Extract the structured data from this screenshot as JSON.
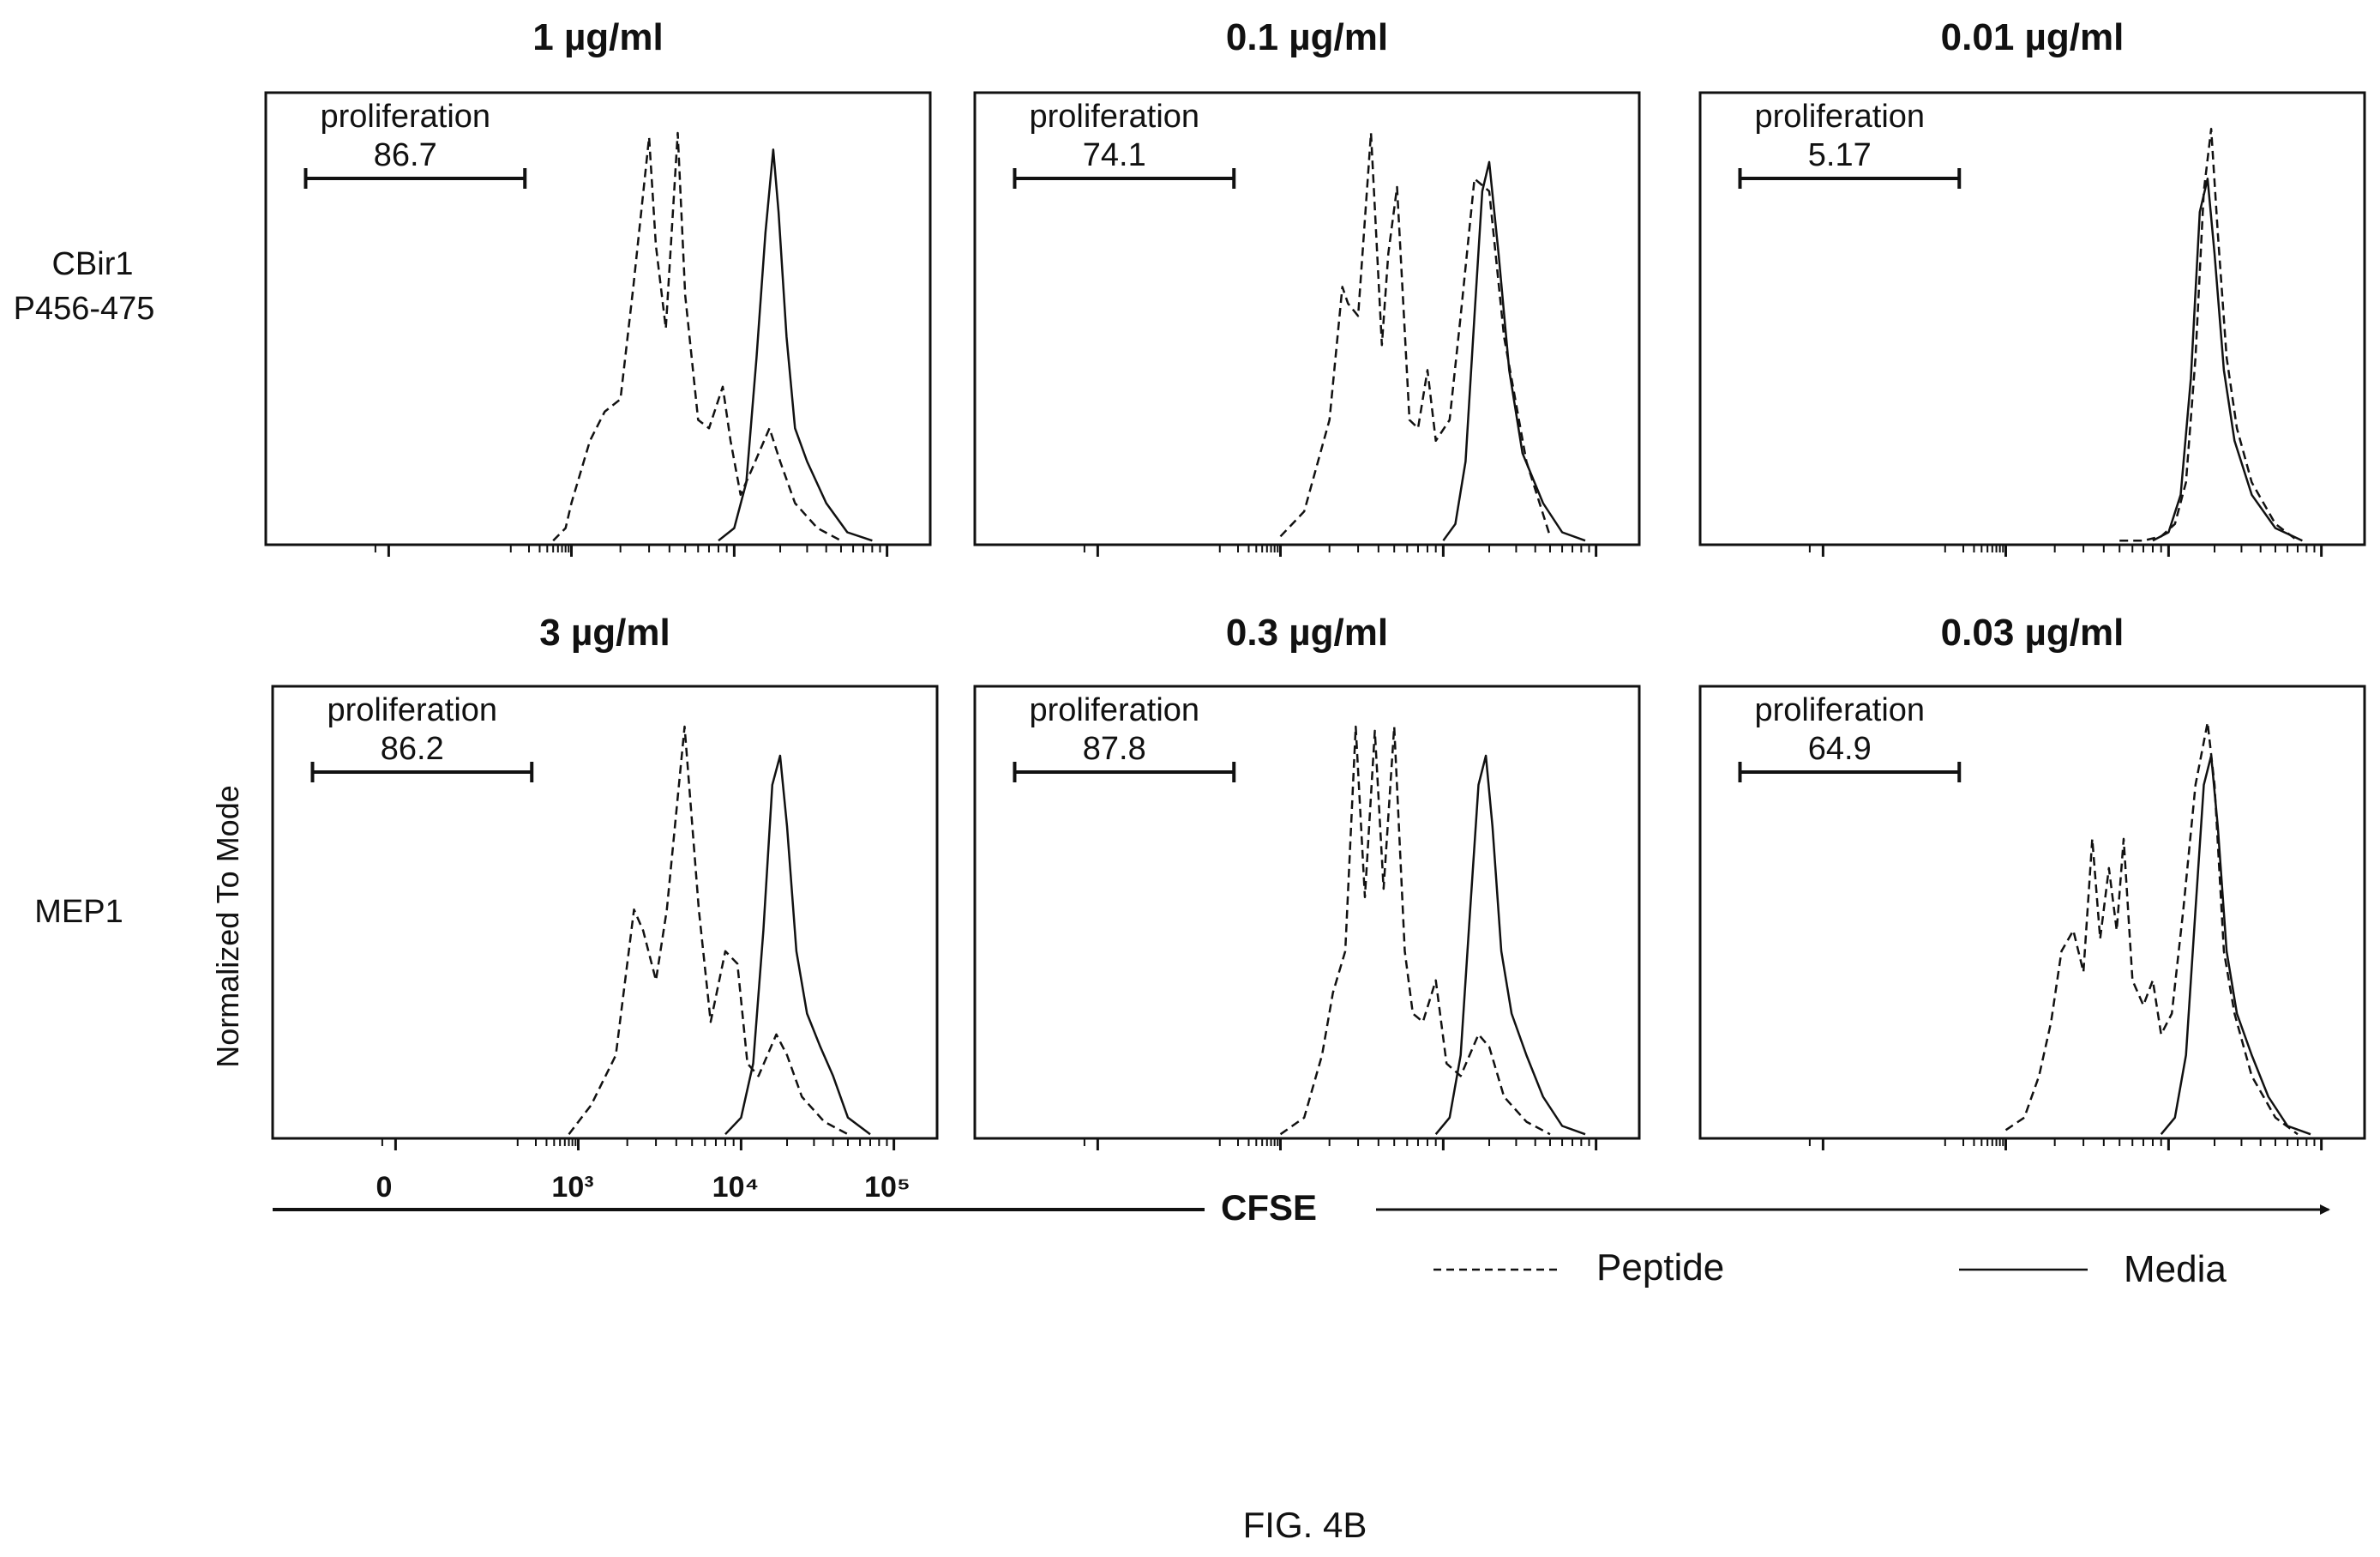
{
  "figure": {
    "caption": "FIG. 4B",
    "x_axis_label": "CFSE",
    "y_axis_label": "Normalized To Mode",
    "x_tick_labels": [
      "0",
      "10³",
      "10⁴",
      "10⁵"
    ],
    "legend": [
      {
        "label": "Peptide",
        "style": "dashed"
      },
      {
        "label": "Media",
        "style": "solid"
      }
    ],
    "row_labels": [
      [
        "CBir1",
        "P456-475"
      ],
      [
        "MEP1"
      ]
    ],
    "gate_label": "proliferation"
  },
  "chart_data": [
    {
      "type": "histogram",
      "row": "CBir1 P456-475",
      "title": "1 µg/ml",
      "gate_value": "86.7",
      "x_scale": "biexponential",
      "xlim": [
        -200,
        200000
      ],
      "ylim": [
        0,
        1
      ],
      "series": [
        {
          "name": "Peptide",
          "style": "dashed",
          "x": [
            500,
            800,
            1000,
            1300,
            1600,
            2000,
            2400,
            3000,
            3300,
            3800,
            4500,
            5000,
            6000,
            7000,
            8500,
            9500,
            11000,
            13000,
            17000,
            20000,
            25000,
            35000,
            50000
          ],
          "y": [
            0.01,
            0.04,
            0.1,
            0.25,
            0.32,
            0.35,
            0.62,
            0.98,
            0.72,
            0.52,
            0.99,
            0.6,
            0.3,
            0.28,
            0.38,
            0.25,
            0.12,
            0.18,
            0.28,
            0.2,
            0.1,
            0.04,
            0.01
          ]
        },
        {
          "name": "Media",
          "style": "solid",
          "x": [
            8000,
            10000,
            12000,
            14000,
            16000,
            18000,
            19500,
            22000,
            25000,
            30000,
            40000,
            55000,
            80000
          ],
          "y": [
            0.01,
            0.04,
            0.15,
            0.45,
            0.75,
            0.95,
            0.8,
            0.5,
            0.28,
            0.2,
            0.1,
            0.03,
            0.01
          ]
        }
      ]
    },
    {
      "type": "histogram",
      "row": "CBir1 P456-475",
      "title": "0.1 µg/ml",
      "gate_value": "74.1",
      "x_scale": "biexponential",
      "xlim": [
        -200,
        200000
      ],
      "ylim": [
        0,
        1
      ],
      "series": [
        {
          "name": "Peptide",
          "style": "dashed",
          "x": [
            1000,
            1400,
            1700,
            2000,
            2400,
            2600,
            3000,
            3600,
            4200,
            4600,
            5200,
            6200,
            7000,
            8000,
            9000,
            11000,
            13000,
            16000,
            20000,
            25000,
            35000,
            50000
          ],
          "y": [
            0.02,
            0.08,
            0.2,
            0.3,
            0.62,
            0.58,
            0.55,
            0.99,
            0.48,
            0.7,
            0.86,
            0.3,
            0.28,
            0.42,
            0.25,
            0.3,
            0.55,
            0.88,
            0.85,
            0.5,
            0.2,
            0.02
          ]
        },
        {
          "name": "Media",
          "style": "solid",
          "x": [
            10000,
            12000,
            14000,
            16000,
            18000,
            20000,
            23000,
            27000,
            33000,
            45000,
            60000,
            85000
          ],
          "y": [
            0.01,
            0.05,
            0.2,
            0.55,
            0.85,
            0.92,
            0.7,
            0.42,
            0.22,
            0.1,
            0.03,
            0.01
          ]
        }
      ]
    },
    {
      "type": "histogram",
      "row": "CBir1 P456-475",
      "title": "0.01 µg/ml",
      "gate_value": "5.17",
      "x_scale": "biexponential",
      "xlim": [
        -200,
        200000
      ],
      "ylim": [
        0,
        1
      ],
      "series": [
        {
          "name": "Peptide",
          "style": "dashed",
          "x": [
            5000,
            7000,
            9000,
            11000,
            13000,
            15000,
            17000,
            19000,
            21000,
            24000,
            28000,
            35000,
            50000,
            70000
          ],
          "y": [
            0.01,
            0.01,
            0.02,
            0.05,
            0.15,
            0.45,
            0.85,
            1.0,
            0.75,
            0.45,
            0.28,
            0.15,
            0.05,
            0.01
          ]
        },
        {
          "name": "Media",
          "style": "solid",
          "x": [
            8000,
            10000,
            12000,
            14000,
            16000,
            18000,
            20000,
            23000,
            27000,
            35000,
            50000,
            75000
          ],
          "y": [
            0.01,
            0.03,
            0.12,
            0.4,
            0.8,
            0.88,
            0.7,
            0.42,
            0.25,
            0.12,
            0.04,
            0.01
          ]
        }
      ]
    },
    {
      "type": "histogram",
      "row": "MEP1",
      "title": "3 µg/ml",
      "gate_value": "86.2",
      "x_scale": "biexponential",
      "xlim": [
        -200,
        200000
      ],
      "ylim": [
        0,
        1
      ],
      "series": [
        {
          "name": "Peptide",
          "style": "dashed",
          "x": [
            700,
            1200,
            1700,
            2200,
            2500,
            3000,
            3500,
            4500,
            5500,
            6500,
            8000,
            9500,
            11000,
            13000,
            17000,
            20000,
            25000,
            35000,
            50000
          ],
          "y": [
            0.01,
            0.08,
            0.2,
            0.55,
            0.5,
            0.38,
            0.55,
            0.99,
            0.55,
            0.28,
            0.45,
            0.42,
            0.18,
            0.15,
            0.25,
            0.2,
            0.1,
            0.04,
            0.01
          ]
        },
        {
          "name": "Media",
          "style": "solid",
          "x": [
            8000,
            10000,
            12000,
            14000,
            16000,
            18000,
            20000,
            23000,
            27000,
            33000,
            40000,
            50000,
            70000
          ],
          "y": [
            0.01,
            0.05,
            0.18,
            0.5,
            0.85,
            0.92,
            0.75,
            0.45,
            0.3,
            0.22,
            0.15,
            0.05,
            0.01
          ]
        }
      ]
    },
    {
      "type": "histogram",
      "row": "MEP1",
      "title": "0.3 µg/ml",
      "gate_value": "87.8",
      "x_scale": "biexponential",
      "xlim": [
        -200,
        200000
      ],
      "ylim": [
        0,
        1
      ],
      "series": [
        {
          "name": "Peptide",
          "style": "dashed",
          "x": [
            1000,
            1400,
            1800,
            2100,
            2500,
            2900,
            3300,
            3800,
            4300,
            5000,
            5800,
            6500,
            7500,
            9000,
            10500,
            13000,
            17000,
            20000,
            25000,
            35000,
            50000
          ],
          "y": [
            0.01,
            0.05,
            0.2,
            0.35,
            0.45,
            0.99,
            0.58,
            0.98,
            0.6,
            0.99,
            0.45,
            0.3,
            0.28,
            0.38,
            0.18,
            0.15,
            0.25,
            0.22,
            0.1,
            0.04,
            0.01
          ]
        },
        {
          "name": "Media",
          "style": "solid",
          "x": [
            9000,
            11000,
            13000,
            15000,
            17000,
            19000,
            21000,
            24000,
            28000,
            35000,
            45000,
            60000,
            85000
          ],
          "y": [
            0.01,
            0.05,
            0.2,
            0.55,
            0.85,
            0.92,
            0.75,
            0.45,
            0.3,
            0.2,
            0.1,
            0.03,
            0.01
          ]
        }
      ]
    },
    {
      "type": "histogram",
      "row": "MEP1",
      "title": "0.03 µg/ml",
      "gate_value": "64.9",
      "x_scale": "biexponential",
      "xlim": [
        -200,
        200000
      ],
      "ylim": [
        0,
        1
      ],
      "series": [
        {
          "name": "Peptide",
          "style": "dashed",
          "x": [
            1000,
            1300,
            1600,
            1900,
            2200,
            2600,
            3000,
            3400,
            3800,
            4300,
            4800,
            5300,
            6000,
            7000,
            8000,
            9000,
            10500,
            12500,
            15000,
            18000,
            20000,
            23000,
            27000,
            35000,
            50000,
            70000
          ],
          "y": [
            0.02,
            0.05,
            0.15,
            0.28,
            0.45,
            0.5,
            0.4,
            0.72,
            0.48,
            0.65,
            0.5,
            0.72,
            0.38,
            0.32,
            0.38,
            0.25,
            0.3,
            0.55,
            0.85,
            1.0,
            0.85,
            0.45,
            0.3,
            0.15,
            0.05,
            0.01
          ]
        },
        {
          "name": "Media",
          "style": "solid",
          "x": [
            9000,
            11000,
            13000,
            15000,
            17000,
            19000,
            21000,
            24000,
            28000,
            35000,
            45000,
            60000,
            85000
          ],
          "y": [
            0.01,
            0.05,
            0.2,
            0.55,
            0.85,
            0.92,
            0.75,
            0.45,
            0.3,
            0.2,
            0.1,
            0.03,
            0.01
          ]
        }
      ]
    }
  ]
}
